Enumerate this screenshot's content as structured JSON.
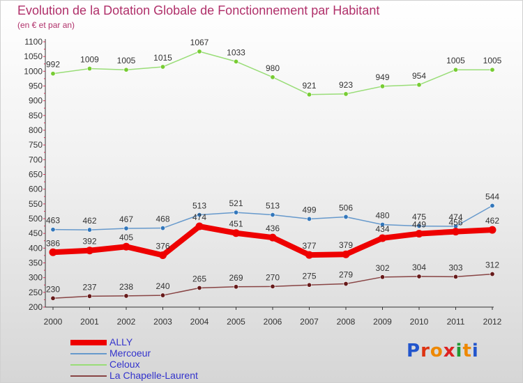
{
  "header": {
    "title": "Evolution de la Dotation Globale de Fonctionnement par Habitant",
    "subtitle": "(en € et par an)"
  },
  "colors": {
    "title": "#b0306a",
    "axis": "#333333",
    "grid_tick": "#cc3355",
    "legend_text": "#3333cc"
  },
  "logo": {
    "letters": [
      "P",
      "r",
      "o",
      "x",
      "i",
      "t",
      "i"
    ]
  },
  "chart_data": {
    "type": "line",
    "title": "Evolution de la Dotation Globale de Fonctionnement par Habitant",
    "subtitle": "(en € et par an)",
    "xlabel": "",
    "ylabel": "",
    "x": [
      "2000",
      "2001",
      "2002",
      "2003",
      "2004",
      "2005",
      "2006",
      "2007",
      "2008",
      "2009",
      "2010",
      "2011",
      "2012"
    ],
    "ylim": [
      200,
      1100
    ],
    "yticks": [
      200,
      250,
      300,
      350,
      400,
      450,
      500,
      550,
      600,
      650,
      700,
      750,
      800,
      850,
      900,
      950,
      1000,
      1050,
      1100
    ],
    "legend_position": "bottom-left",
    "series": [
      {
        "name": "ALLY",
        "values": [
          386,
          392,
          405,
          376,
          474,
          451,
          436,
          377,
          379,
          434,
          449,
          456,
          462
        ],
        "color": "#ee0000",
        "marker_color": "#ee0000"
      },
      {
        "name": "Mercoeur",
        "values": [
          463,
          462,
          467,
          468,
          513,
          521,
          513,
          499,
          506,
          480,
          475,
          474,
          544
        ],
        "color": "#6699cc",
        "marker_color": "#3377bb"
      },
      {
        "name": "Celoux",
        "values": [
          992,
          1009,
          1005,
          1015,
          1067,
          1033,
          980,
          921,
          923,
          949,
          954,
          1005,
          1005
        ],
        "color": "#99dd77",
        "marker_color": "#77cc33"
      },
      {
        "name": "La Chapelle-Laurent",
        "values": [
          230,
          237,
          238,
          240,
          265,
          269,
          270,
          275,
          279,
          302,
          304,
          303,
          312
        ],
        "color": "#884444",
        "marker_color": "#661a1a"
      }
    ]
  }
}
